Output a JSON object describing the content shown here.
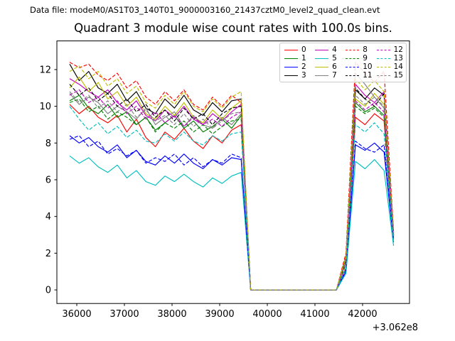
{
  "header": {
    "datafile": "Data file: modeM0/AS1T03_140T01_9000003160_21437cztM0_level2_quad_clean.evt"
  },
  "chart": {
    "title": "Quadrant 3 module wise count rates with 100.0s bins."
  },
  "chart_data": {
    "type": "line",
    "title": "Quadrant 3 module wise count rates with 100.0s bins.",
    "xlabel": "",
    "ylabel": "",
    "x_offset_label": "+3.062e8",
    "xlim": [
      35582,
      42985
    ],
    "ylim": [
      -0.74,
      13.56
    ],
    "x_ticks": [
      36000,
      37000,
      38000,
      39000,
      40000,
      41000,
      42000
    ],
    "y_ticks": [
      0,
      2,
      4,
      6,
      8,
      10,
      12
    ],
    "grid": false,
    "legend_position": "upper right",
    "legend_columns": 4,
    "bin_seconds": 100.0,
    "x": [
      35850,
      36050,
      36250,
      36450,
      36650,
      36850,
      37050,
      37250,
      37450,
      37650,
      37850,
      38050,
      38250,
      38450,
      38650,
      38850,
      39050,
      39250,
      39450,
      39650,
      39850,
      40050,
      40250,
      40450,
      40650,
      40850,
      41050,
      41250,
      41450,
      41650,
      41850,
      42050,
      42250,
      42450,
      42650
    ],
    "series": [
      {
        "name": "0",
        "color": "#ff0000",
        "dash": false,
        "values": [
          10.1,
          9.6,
          10.0,
          9.4,
          9.1,
          9.5,
          8.6,
          9.3,
          8.3,
          7.8,
          8.6,
          8.2,
          8.8,
          8.1,
          7.7,
          8.4,
          8.0,
          8.7,
          9.0,
          0,
          0,
          0,
          0,
          0,
          0,
          0,
          0,
          0,
          0,
          1.2,
          9.4,
          9.0,
          9.6,
          9.2,
          2.8
        ]
      },
      {
        "name": "1",
        "color": "#008000",
        "dash": false,
        "values": [
          10.3,
          10.6,
          9.9,
          9.6,
          10.1,
          9.4,
          9.7,
          9.0,
          9.4,
          8.7,
          9.1,
          9.5,
          8.8,
          9.2,
          8.6,
          8.9,
          9.3,
          8.8,
          9.5,
          0,
          0,
          0,
          0,
          0,
          0,
          0,
          0,
          0,
          0,
          1.5,
          10.2,
          9.7,
          10.0,
          9.5,
          2.9
        ]
      },
      {
        "name": "2",
        "color": "#0000ff",
        "dash": false,
        "values": [
          8.4,
          8.0,
          8.3,
          7.8,
          7.5,
          7.9,
          7.2,
          7.6,
          7.0,
          6.8,
          7.3,
          6.9,
          7.4,
          6.9,
          6.6,
          7.1,
          6.8,
          7.2,
          7.1,
          0,
          0,
          0,
          0,
          0,
          0,
          0,
          0,
          0,
          0,
          1.0,
          7.9,
          7.6,
          8.0,
          7.5,
          2.6
        ]
      },
      {
        "name": "3",
        "color": "#000000",
        "dash": false,
        "values": [
          12.3,
          11.4,
          11.9,
          11.0,
          10.7,
          11.2,
          10.3,
          10.8,
          9.9,
          9.6,
          10.4,
          9.9,
          10.6,
          9.8,
          9.5,
          10.2,
          9.7,
          10.3,
          10.4,
          0,
          0,
          0,
          0,
          0,
          0,
          0,
          0,
          0,
          0,
          1.8,
          10.9,
          10.4,
          11.0,
          10.6,
          3.1
        ]
      },
      {
        "name": "4",
        "color": "#bf00bf",
        "dash": false,
        "values": [
          11.5,
          11.2,
          10.8,
          10.5,
          10.9,
          10.2,
          9.8,
          10.3,
          9.5,
          9.2,
          9.8,
          9.4,
          10.0,
          9.3,
          9.0,
          9.6,
          9.2,
          9.7,
          10.1,
          0,
          0,
          0,
          0,
          0,
          0,
          0,
          0,
          0,
          0,
          1.6,
          11.2,
          10.6,
          10.2,
          10.8,
          3.0
        ]
      },
      {
        "name": "5",
        "color": "#00bfbf",
        "dash": false,
        "values": [
          7.3,
          6.9,
          7.2,
          6.7,
          6.4,
          6.8,
          6.1,
          6.5,
          5.9,
          5.7,
          6.2,
          5.9,
          6.3,
          5.9,
          5.6,
          6.1,
          5.8,
          6.2,
          6.4,
          0,
          0,
          0,
          0,
          0,
          0,
          0,
          0,
          0,
          0,
          0.9,
          7.0,
          6.6,
          7.1,
          6.5,
          2.4
        ]
      },
      {
        "name": "6",
        "color": "#bfbf00",
        "dash": false,
        "values": [
          11.0,
          11.6,
          10.8,
          11.3,
          10.4,
          10.8,
          10.0,
          10.5,
          9.6,
          9.3,
          10.0,
          9.5,
          10.2,
          9.4,
          9.1,
          9.8,
          9.3,
          9.9,
          10.3,
          0,
          0,
          0,
          0,
          0,
          0,
          0,
          0,
          0,
          0,
          1.7,
          10.4,
          10.0,
          10.7,
          10.1,
          2.9
        ]
      },
      {
        "name": "7",
        "color": "#808080",
        "dash": false,
        "values": [
          10.7,
          10.1,
          10.5,
          10.2,
          9.6,
          10.0,
          9.7,
          9.3,
          9.9,
          9.0,
          9.4,
          9.7,
          8.9,
          9.5,
          9.0,
          8.8,
          9.4,
          9.0,
          9.6,
          0,
          0,
          0,
          0,
          0,
          0,
          0,
          0,
          0,
          0,
          1.5,
          11.8,
          11.2,
          10.5,
          9.9,
          3.0
        ]
      },
      {
        "name": "8",
        "color": "#ff0000",
        "dash": true,
        "values": [
          12.4,
          12.1,
          12.3,
          11.7,
          11.4,
          11.8,
          11.0,
          11.4,
          10.5,
          10.1,
          10.8,
          10.3,
          10.9,
          10.1,
          9.8,
          10.5,
          10.0,
          10.6,
          10.2,
          0,
          0,
          0,
          0,
          0,
          0,
          0,
          0,
          0,
          0,
          2.0,
          12.4,
          11.8,
          11.3,
          11.9,
          3.2
        ]
      },
      {
        "name": "9",
        "color": "#008000",
        "dash": true,
        "values": [
          10.2,
          10.4,
          9.7,
          10.0,
          9.3,
          9.7,
          9.4,
          9.0,
          9.4,
          8.6,
          9.1,
          8.8,
          9.2,
          8.6,
          9.0,
          8.5,
          8.9,
          9.2,
          9.3,
          0,
          0,
          0,
          0,
          0,
          0,
          0,
          0,
          0,
          0,
          1.4,
          10.0,
          9.6,
          9.9,
          9.4,
          2.8
        ]
      },
      {
        "name": "10",
        "color": "#0000ff",
        "dash": true,
        "values": [
          8.2,
          8.4,
          7.8,
          8.1,
          7.4,
          7.7,
          7.3,
          7.6,
          6.9,
          7.2,
          7.0,
          7.4,
          6.8,
          7.2,
          6.7,
          7.1,
          6.9,
          7.4,
          7.2,
          0,
          0,
          0,
          0,
          0,
          0,
          0,
          0,
          0,
          0,
          1.1,
          8.1,
          7.7,
          7.5,
          7.9,
          2.7
        ]
      },
      {
        "name": "11",
        "color": "#000000",
        "dash": true,
        "values": [
          11.2,
          10.6,
          11.0,
          10.3,
          10.7,
          10.0,
          10.4,
          9.7,
          10.1,
          9.4,
          9.8,
          9.2,
          9.9,
          9.3,
          9.6,
          9.0,
          9.6,
          9.9,
          10.0,
          0,
          0,
          0,
          0,
          0,
          0,
          0,
          0,
          0,
          0,
          1.6,
          11.0,
          10.4,
          10.0,
          10.7,
          3.0
        ]
      },
      {
        "name": "12",
        "color": "#bf00bf",
        "dash": true,
        "values": [
          10.6,
          10.9,
          10.2,
          10.5,
          9.9,
          10.3,
          9.6,
          10.0,
          9.3,
          9.7,
          9.1,
          9.5,
          8.9,
          9.4,
          9.0,
          9.3,
          8.9,
          9.4,
          9.7,
          0,
          0,
          0,
          0,
          0,
          0,
          0,
          0,
          0,
          0,
          1.5,
          10.3,
          9.8,
          10.2,
          9.7,
          2.9
        ]
      },
      {
        "name": "13",
        "color": "#00bfbf",
        "dash": true,
        "values": [
          10.0,
          9.3,
          8.7,
          9.1,
          8.5,
          8.9,
          8.3,
          8.7,
          8.1,
          8.0,
          8.5,
          8.1,
          8.6,
          8.1,
          7.9,
          8.4,
          8.1,
          8.5,
          8.6,
          0,
          0,
          0,
          0,
          0,
          0,
          0,
          0,
          0,
          0,
          1.2,
          9.0,
          8.6,
          9.1,
          8.5,
          2.6
        ]
      },
      {
        "name": "14",
        "color": "#bfbf00",
        "dash": true,
        "values": [
          11.9,
          12.2,
          11.5,
          11.9,
          11.1,
          11.5,
          10.7,
          11.1,
          10.2,
          9.9,
          10.6,
          10.1,
          10.8,
          10.0,
          9.7,
          10.4,
          9.9,
          10.5,
          10.8,
          0,
          0,
          0,
          0,
          0,
          0,
          0,
          0,
          0,
          0,
          1.8,
          11.5,
          10.9,
          11.4,
          10.8,
          3.1
        ]
      },
      {
        "name": "15",
        "color": "#808080",
        "dash": true,
        "values": [
          10.8,
          10.2,
          10.6,
          9.9,
          10.3,
          9.7,
          10.1,
          9.4,
          9.8,
          9.2,
          9.5,
          9.0,
          9.6,
          8.9,
          9.3,
          8.8,
          9.2,
          9.6,
          9.7,
          0,
          0,
          0,
          0,
          0,
          0,
          0,
          0,
          0,
          0,
          1.5,
          10.6,
          10.1,
          10.5,
          10.0,
          2.9
        ]
      }
    ]
  }
}
